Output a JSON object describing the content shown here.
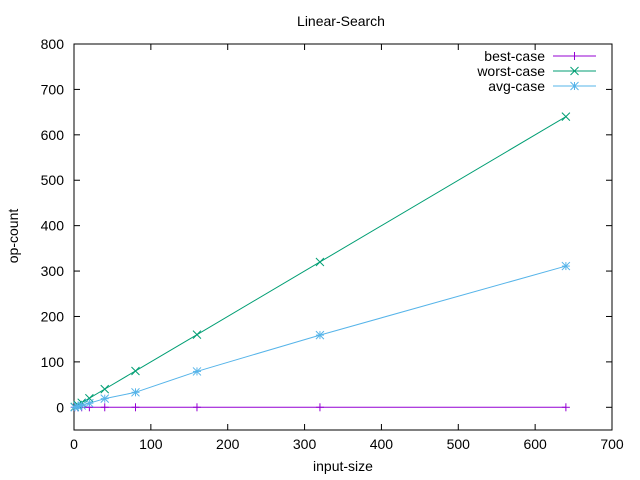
{
  "chart_data": {
    "type": "line",
    "title": "Linear-Search",
    "xlabel": "input-size",
    "ylabel": "op-count",
    "xlim": [
      0,
      700
    ],
    "ylim": [
      -50,
      800
    ],
    "xticks": [
      0,
      100,
      200,
      300,
      400,
      500,
      600,
      700
    ],
    "yticks": [
      0,
      100,
      200,
      300,
      400,
      500,
      600,
      700,
      800
    ],
    "grid": false,
    "legend_position": "top-right",
    "x": [
      1,
      5,
      10,
      20,
      40,
      80,
      160,
      320,
      640
    ],
    "series": [
      {
        "name": "best-case",
        "color": "#9400d3",
        "marker": "plus",
        "values": [
          0,
          0,
          0,
          0,
          0,
          0,
          0,
          0,
          0
        ]
      },
      {
        "name": "worst-case",
        "color": "#009e73",
        "marker": "cross",
        "values": [
          1,
          5,
          10,
          20,
          40,
          80,
          160,
          320,
          640
        ]
      },
      {
        "name": "avg-case",
        "color": "#56b4e9",
        "marker": "star",
        "values": [
          0,
          2,
          4,
          9,
          19,
          33,
          79,
          159,
          311
        ]
      }
    ]
  }
}
